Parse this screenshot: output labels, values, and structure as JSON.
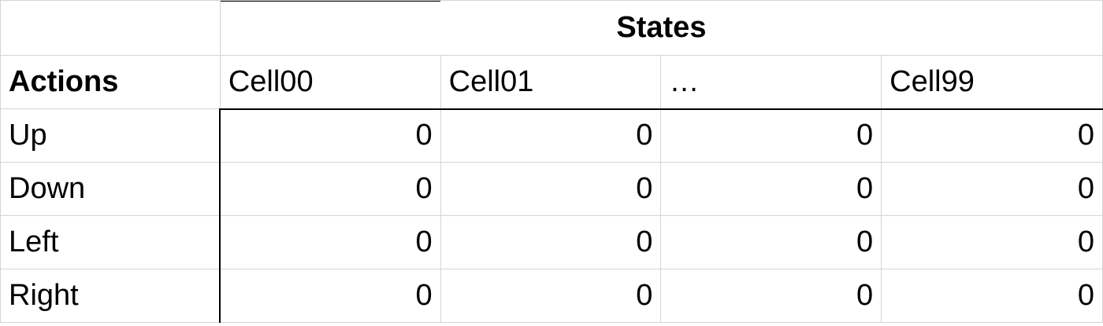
{
  "table": {
    "group_header": "States",
    "row_header_label": "Actions",
    "columns": [
      "Cell00",
      "Cell01",
      "…",
      "Cell99"
    ],
    "rows": [
      {
        "action": "Up",
        "values": [
          "0",
          "0",
          "0",
          "0"
        ]
      },
      {
        "action": "Down",
        "values": [
          "0",
          "0",
          "0",
          "0"
        ]
      },
      {
        "action": "Left",
        "values": [
          "0",
          "0",
          "0",
          "0"
        ]
      },
      {
        "action": "Right",
        "values": [
          "0",
          "0",
          "0",
          "0"
        ]
      }
    ]
  }
}
